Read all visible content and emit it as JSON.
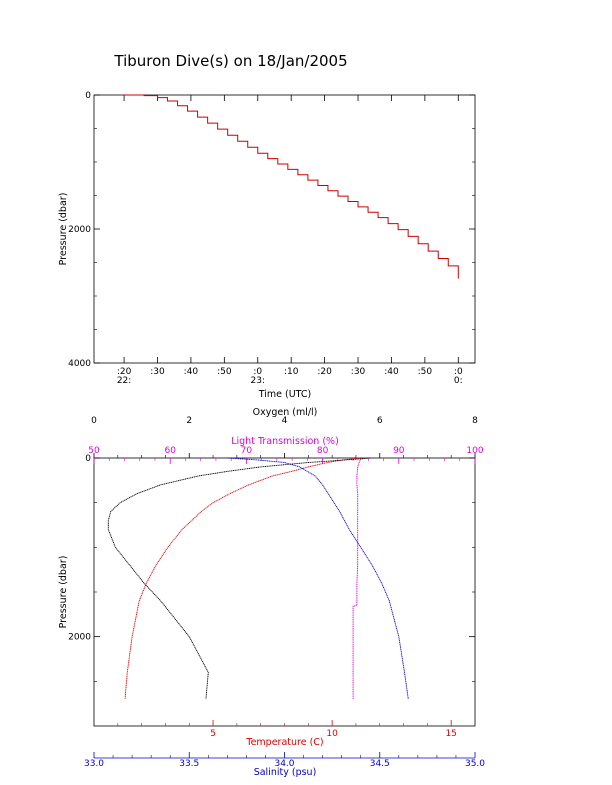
{
  "title": "Tiburon Dive(s) on 18/Jan/2005",
  "colors": {
    "axis": "#000000",
    "pressure_trace": "#cc0000",
    "temperature": "#dd0000",
    "salinity": "#0000cc",
    "light_transmission": "#dd00dd",
    "oxygen": "#000000"
  },
  "chart_data": [
    {
      "type": "line",
      "title": "Tiburon Dive(s) on 18/Jan/2005",
      "xlabel": "Time (UTC)",
      "ylabel": "Pressure (dbar)",
      "xlim": [
        "22:11",
        "00:05"
      ],
      "ylim": [
        4000,
        0
      ],
      "y_ticks": [
        "0",
        "2000",
        "4000"
      ],
      "x_ticks": [
        {
          "t": "22:20",
          "minor": ":20",
          "major": "22:"
        },
        {
          "t": "22:30",
          "minor": ":30",
          "major": ""
        },
        {
          "t": "22:40",
          "minor": ":40",
          "major": ""
        },
        {
          "t": "22:50",
          "minor": ":50",
          "major": ""
        },
        {
          "t": "23:00",
          "minor": ":0",
          "major": "23:"
        },
        {
          "t": "23:10",
          "minor": ":10",
          "major": ""
        },
        {
          "t": "23:20",
          "minor": ":20",
          "major": ""
        },
        {
          "t": "23:30",
          "minor": ":30",
          "major": ""
        },
        {
          "t": "23:40",
          "minor": ":40",
          "major": ""
        },
        {
          "t": "23:50",
          "minor": ":50",
          "major": ""
        },
        {
          "t": "00:00",
          "minor": ":0",
          "major": "0:"
        }
      ],
      "grid": false,
      "series": [
        {
          "x": [
            "22:20",
            "22:26",
            "22:30",
            "22:33",
            "22:36",
            "22:39",
            "22:42",
            "22:45",
            "22:48",
            "22:51",
            "22:54",
            "22:57",
            "23:00",
            "23:03",
            "23:06",
            "23:09",
            "23:12",
            "23:15",
            "23:18",
            "23:21",
            "23:24",
            "23:27",
            "23:30",
            "23:33",
            "23:36",
            "23:39",
            "23:42",
            "23:45",
            "23:48",
            "23:51",
            "23:54",
            "23:57",
            "00:00"
          ],
          "y": [
            0,
            10,
            40,
            90,
            160,
            240,
            330,
            420,
            510,
            600,
            690,
            780,
            870,
            950,
            1030,
            1110,
            1190,
            1270,
            1350,
            1430,
            1510,
            1590,
            1670,
            1750,
            1830,
            1920,
            2010,
            2110,
            2220,
            2330,
            2440,
            2550,
            2740
          ]
        }
      ]
    },
    {
      "type": "line",
      "ylabel": "Pressure (dbar)",
      "ylim": [
        3000,
        0
      ],
      "y_ticks": [
        "0",
        "2000"
      ],
      "grid": false,
      "axes": {
        "oxygen": {
          "label": "Oxygen (ml/l)",
          "range": [
            0,
            8
          ],
          "ticks": [
            "0",
            "2",
            "4",
            "6",
            "8"
          ],
          "position": "top"
        },
        "light_transmission": {
          "label": "Light Transmission (%)",
          "range": [
            50,
            100
          ],
          "ticks": [
            "50",
            "60",
            "70",
            "80",
            "90",
            "100"
          ],
          "position": "top"
        },
        "temperature": {
          "label": "Temperature (C)",
          "range": [
            0,
            16
          ],
          "ticks": [
            "5",
            "10",
            "15"
          ],
          "position": "bottom"
        },
        "salinity": {
          "label": "Salinity (psu)",
          "range": [
            33.0,
            35.0
          ],
          "ticks": [
            "33.0",
            "33.5",
            "34.0",
            "34.5",
            "35.0"
          ],
          "position": "bottom"
        }
      },
      "series": [
        {
          "name": "Temperature (C)",
          "axis": "temperature",
          "pressure": [
            0,
            20,
            50,
            100,
            150,
            200,
            300,
            400,
            500,
            600,
            800,
            1000,
            1200,
            1400,
            1600,
            2000,
            2400,
            2700
          ],
          "values": [
            11.2,
            10.5,
            9.8,
            9.0,
            8.3,
            7.5,
            6.5,
            5.7,
            5.0,
            4.5,
            3.7,
            3.1,
            2.6,
            2.2,
            1.9,
            1.6,
            1.4,
            1.3
          ]
        },
        {
          "name": "Salinity (psu)",
          "axis": "salinity",
          "pressure": [
            0,
            20,
            50,
            100,
            150,
            200,
            300,
            400,
            500,
            600,
            800,
            1000,
            1200,
            1400,
            1600,
            2000,
            2400,
            2700
          ],
          "values": [
            33.7,
            33.85,
            34.0,
            34.08,
            34.12,
            34.16,
            34.2,
            34.23,
            34.26,
            34.29,
            34.34,
            34.4,
            34.46,
            34.51,
            34.55,
            34.6,
            34.63,
            34.65
          ]
        },
        {
          "name": "Light Transmission (%)",
          "axis": "light_transmission",
          "pressure": [
            0,
            10,
            50,
            100,
            200,
            300,
            400,
            500,
            600,
            800,
            1000,
            1200,
            1400,
            1500,
            1650,
            1660,
            1800,
            2000,
            2200,
            2400,
            2700
          ],
          "values": [
            85.5,
            85.0,
            84.8,
            84.6,
            84.5,
            84.5,
            84.6,
            84.6,
            84.6,
            84.6,
            84.6,
            84.6,
            84.5,
            84.5,
            84.5,
            84.0,
            84.0,
            84.0,
            84.0,
            84.0,
            84.0
          ]
        },
        {
          "name": "Oxygen (ml/l)",
          "axis": "oxygen",
          "pressure": [
            0,
            10,
            50,
            100,
            150,
            200,
            300,
            400,
            500,
            600,
            700,
            800,
            1000,
            1200,
            1400,
            1600,
            2000,
            2400,
            2700
          ],
          "values": [
            5.8,
            5.6,
            4.5,
            3.5,
            2.8,
            2.2,
            1.4,
            0.9,
            0.55,
            0.35,
            0.3,
            0.3,
            0.45,
            0.75,
            1.05,
            1.4,
            2.0,
            2.4,
            2.35
          ]
        }
      ]
    }
  ]
}
